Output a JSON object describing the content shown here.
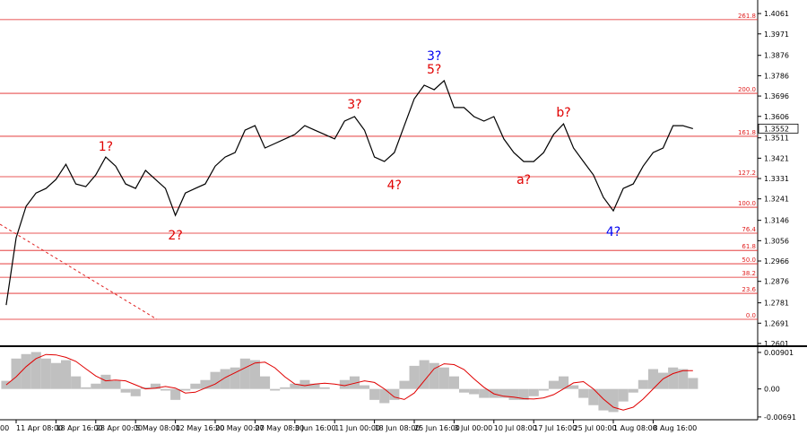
{
  "chart_data": [
    {
      "type": "line",
      "categories": [
        "00",
        null,
        null,
        null,
        "11 Apr 08:00",
        null,
        null,
        null,
        "18 Apr 16:00",
        null,
        null,
        null,
        "28 Apr 00:00",
        null,
        null,
        null,
        "5 May 08:00",
        null,
        null,
        null,
        "12 May 16:00",
        null,
        null,
        null,
        "20 May 00:00",
        null,
        null,
        null,
        "27 May 08:00",
        null,
        null,
        null,
        "3 Jun 16:00",
        null,
        null,
        null,
        "11 Jun 00:00",
        null,
        null,
        null,
        "18 Jun 08:00",
        null,
        null,
        null,
        "25 Jun 16:00",
        null,
        null,
        null,
        "3 Jul 00:00",
        null,
        null,
        null,
        "10 Jul 08:00",
        null,
        null,
        null,
        "17 Jul 16:00",
        null,
        null,
        null,
        "25 Jul 00:00",
        null,
        null,
        null,
        "1 Aug 08:00",
        null,
        null,
        null,
        "8 Aug 16:00",
        null,
        null,
        null,
        null
      ],
      "series": [
        {
          "color": "#000000",
          "values": [
            null,
            null,
            null,
            1.2771,
            1.3069,
            1.3208,
            1.3267,
            1.3287,
            1.3327,
            1.3394,
            1.3307,
            1.3295,
            1.3347,
            1.3426,
            1.3386,
            1.3307,
            1.3287,
            1.3367,
            1.3327,
            1.3287,
            1.3168,
            1.3267,
            1.3287,
            1.3307,
            1.3386,
            1.3426,
            1.3446,
            1.3545,
            1.3565,
            1.3466,
            1.3486,
            1.3506,
            1.3526,
            1.3565,
            1.3545,
            1.3526,
            1.3506,
            1.3585,
            1.3605,
            1.3545,
            1.3426,
            1.3406,
            1.3446,
            1.3565,
            1.3684,
            1.3744,
            1.3724,
            1.3764,
            1.3645,
            1.3645,
            1.3605,
            1.3585,
            1.3605,
            1.3506,
            1.3446,
            1.3406,
            1.3406,
            1.3446,
            1.3526,
            1.3573,
            1.3466,
            1.3406,
            1.3347,
            1.3248,
            1.3188,
            1.3287,
            1.3307,
            1.3386,
            1.3446,
            1.3466,
            1.3565,
            1.3565,
            1.3552
          ]
        }
      ],
      "ylim": [
        1.2593,
        1.4113
      ],
      "yticks": [
        1.4061,
        1.3971,
        1.3876,
        1.3786,
        1.3696,
        1.3606,
        1.3511,
        1.3421,
        1.3331,
        1.3241,
        1.3146,
        1.3056,
        1.2966,
        1.2876,
        1.2781,
        1.2691,
        1.2601
      ],
      "last_price": 1.3552,
      "level_color": "#e02020",
      "levels": [
        {
          "label": "261.8",
          "price": 1.4034
        },
        {
          "label": "200.0",
          "price": 1.3708
        },
        {
          "label": "161.8",
          "price": 1.3518
        },
        {
          "label": "127.2",
          "price": 1.3339
        },
        {
          "label": "100.0",
          "price": 1.3204
        },
        {
          "label": "76.4",
          "price": 1.3089
        },
        {
          "label": "61.8",
          "price": 1.3013
        },
        {
          "label": "50.0",
          "price": 1.2954
        },
        {
          "label": "38.2",
          "price": 1.2894
        },
        {
          "label": "23.6",
          "price": 1.2823
        },
        {
          "label": "0.0",
          "price": 1.2708
        }
      ],
      "annotations": [
        {
          "text": "1?",
          "color": "#e00000",
          "index": 13,
          "price": 1.3474
        },
        {
          "text": "2?",
          "color": "#e00000",
          "index": 20,
          "price": 1.3081
        },
        {
          "text": "3?",
          "color": "#e00000",
          "index": 38,
          "price": 1.366
        },
        {
          "text": "4?",
          "color": "#e00000",
          "index": 42,
          "price": 1.3303
        },
        {
          "text": "3?",
          "color": "#0000ee",
          "index": 46,
          "price": 1.3875
        },
        {
          "text": "5?",
          "color": "#e00000",
          "index": 46,
          "price": 1.3815
        },
        {
          "text": "a?",
          "color": "#e00000",
          "index": 55,
          "price": 1.3327
        },
        {
          "text": "b?",
          "color": "#e00000",
          "index": 59,
          "price": 1.3625
        },
        {
          "text": "4?",
          "color": "#0000ee",
          "index": 64,
          "price": 1.3097
        }
      ]
    },
    {
      "type": "macd",
      "series": [
        {
          "color": "#c0c0c0",
          "values": [
            null,
            null,
            null,
            0.002,
            0.0075,
            0.0086,
            0.0091,
            0.0075,
            0.0064,
            0.0071,
            0.0031,
            0.0004,
            0.0013,
            0.0035,
            0.002,
            -0.0009,
            -0.0018,
            0.0004,
            0.0013,
            -0.0004,
            -0.0027,
            -0.0004,
            0.0013,
            0.0022,
            0.0042,
            0.0049,
            0.0053,
            0.0075,
            0.0071,
            0.0031,
            -0.0004,
            0.0004,
            0.0013,
            0.0022,
            0.0013,
            0.0004,
            0.0,
            0.0022,
            0.0031,
            0.0009,
            -0.0027,
            -0.0035,
            -0.0027,
            0.002,
            0.0057,
            0.0071,
            0.0064,
            0.0053,
            0.0031,
            -0.0009,
            -0.0013,
            -0.0022,
            -0.0022,
            -0.0022,
            -0.0027,
            -0.0027,
            -0.0018,
            -0.0004,
            0.002,
            0.0031,
            0.0009,
            -0.0022,
            -0.004,
            -0.0053,
            -0.0057,
            -0.0031,
            -0.0009,
            0.0022,
            0.0049,
            0.004,
            0.0053,
            0.0049,
            0.0027
          ]
        },
        {
          "color": "#e00000",
          "values": [
            null,
            null,
            null,
            0.001,
            0.003,
            0.0055,
            0.0075,
            0.0085,
            0.0084,
            0.0078,
            0.0068,
            0.005,
            0.0032,
            0.002,
            0.0022,
            0.002,
            0.001,
            0.0,
            0.0002,
            0.0006,
            0.0002,
            -0.001,
            -0.0008,
            0.0002,
            0.0012,
            0.0028,
            0.004,
            0.0052,
            0.0064,
            0.0066,
            0.0052,
            0.003,
            0.0012,
            0.0008,
            0.0012,
            0.0014,
            0.0012,
            0.0008,
            0.0014,
            0.002,
            0.0016,
            0.0,
            -0.002,
            -0.0026,
            -0.001,
            0.002,
            0.005,
            0.0062,
            0.006,
            0.0048,
            0.0025,
            0.0004,
            -0.0012,
            -0.0018,
            -0.002,
            -0.0024,
            -0.0025,
            -0.0022,
            -0.0014,
            0.0,
            0.0015,
            0.0018,
            0.0,
            -0.0025,
            -0.0045,
            -0.0052,
            -0.0045,
            -0.0025,
            0.0,
            0.0025,
            0.0038,
            0.0045,
            0.0045
          ]
        }
      ],
      "ylim": [
        -0.0076,
        0.0101
      ],
      "yticks": [
        0.00901,
        {
          "value": 0,
          "label": "0.00"
        },
        -0.00691
      ]
    }
  ]
}
